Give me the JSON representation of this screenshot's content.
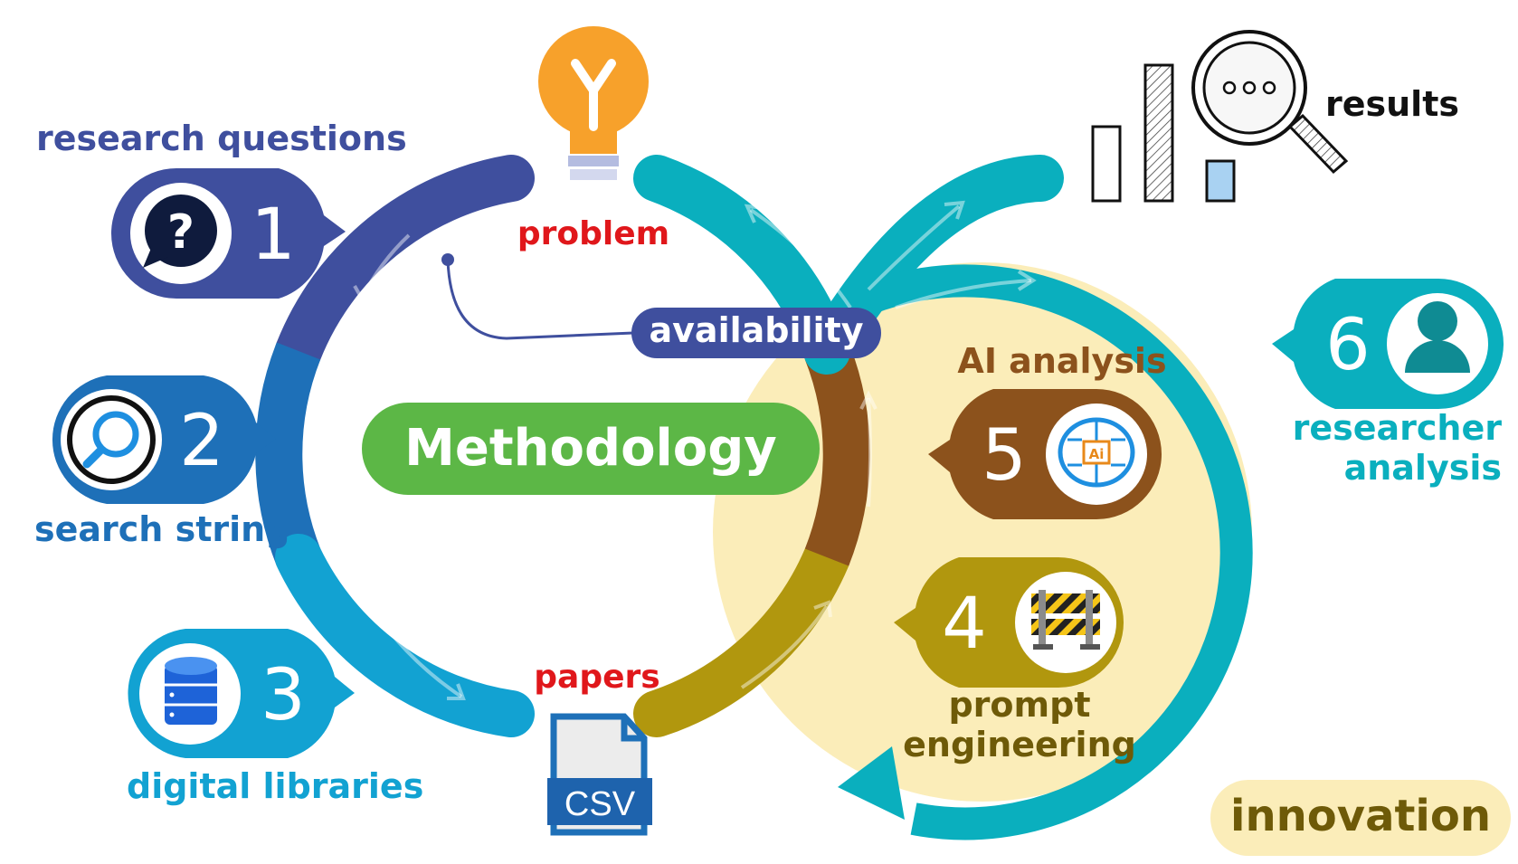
{
  "labels": {
    "research_questions": "research questions",
    "search_string": "search string",
    "digital_libraries": "digital libraries",
    "problem": "problem",
    "papers": "papers",
    "availability": "availability",
    "methodology": "Methodology",
    "ai_analysis": "AI analysis",
    "prompt_engineering_1": "prompt",
    "prompt_engineering_2": "engineering",
    "researcher_analysis_1": "researcher",
    "researcher_analysis_2": "analysis",
    "results": "results",
    "innovation": "innovation",
    "csv": "CSV",
    "ai_chip": "Ai"
  },
  "steps": {
    "s1": "1",
    "s2": "2",
    "s3": "3",
    "s4": "4",
    "s5": "5",
    "s6": "6"
  },
  "icons": {
    "s1": "question-bubble-icon",
    "s2": "magnifier-icon",
    "s3": "database-icon",
    "s4": "barrier-icon",
    "s5": "ai-brain-icon",
    "s6": "user-icon",
    "problem": "lightbulb-icon",
    "papers": "csv-file-icon",
    "results": "bar-chart-magnifier-icon"
  },
  "colors": {
    "step1": "#3F4F9E",
    "step2": "#1E70B8",
    "step3": "#12A2D2",
    "step4": "#B1970E",
    "step5": "#8C521C",
    "step6": "#0AAFBE",
    "methodology": "#5CB746",
    "problem_text": "#E0171B",
    "innovation_fill": "#FBEDB9",
    "innovation_text": "#6E5A08"
  }
}
